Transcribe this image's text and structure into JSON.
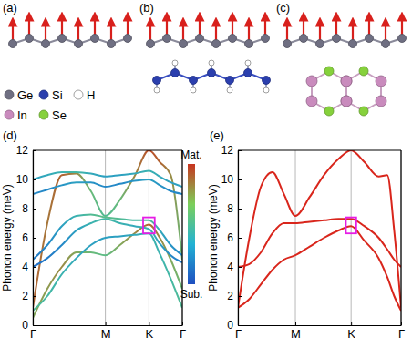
{
  "diagram": {
    "panels": [
      {
        "label": "(a)"
      },
      {
        "label": "(b)"
      },
      {
        "label": "(c)"
      }
    ],
    "legend": [
      {
        "label": "Ge",
        "color": "#6f6f82"
      },
      {
        "label": "Si",
        "color": "#2b3fae"
      },
      {
        "label": "H",
        "color": "#ffffff"
      },
      {
        "label": "In",
        "color": "#c98bbd"
      },
      {
        "label": "Se",
        "color": "#86d13c"
      }
    ],
    "spin_color": "#d8201c"
  },
  "chart_data": [
    {
      "type": "line",
      "title": "(d)",
      "y_label": "Phonon energy (meV)",
      "x": [
        0,
        0.2,
        0.4,
        0.6,
        0.8,
        1.0,
        1.2,
        1.4,
        1.6,
        1.75,
        1.9,
        2.06
      ],
      "xlim": [
        0,
        2.06
      ],
      "xticks": [
        {
          "value": 0,
          "label": "Γ"
        },
        {
          "value": 1,
          "label": "M"
        },
        {
          "value": 1.6,
          "label": "K"
        },
        {
          "value": 2.06,
          "label": "Γ"
        }
      ],
      "ylim": [
        0,
        12
      ],
      "yticks": [
        0,
        2,
        4,
        6,
        8,
        10,
        12
      ],
      "grid": "x",
      "series": [
        {
          "values": [
            1.2,
            7.0,
            10.3,
            10.4,
            9.2,
            7.5,
            8.6,
            10.2,
            12.0,
            11.2,
            10.3,
            4.5
          ],
          "weights": [
            0.9,
            0.85,
            0.9,
            0.8,
            0.6,
            0.5,
            0.6,
            0.8,
            0.95,
            0.9,
            0.8,
            0.6
          ]
        },
        {
          "values": [
            0.5,
            2.5,
            4.0,
            5.0,
            5.0,
            4.8,
            5.5,
            6.3,
            6.9,
            6.0,
            4.5,
            2.5
          ],
          "weights": [
            0.7,
            0.75,
            0.8,
            0.7,
            0.6,
            0.55,
            0.7,
            0.8,
            0.9,
            0.8,
            0.7,
            0.6
          ]
        },
        {
          "values": [
            10.0,
            10.3,
            10.5,
            10.5,
            10.4,
            10.2,
            10.3,
            10.4,
            10.6,
            10.2,
            9.8,
            9.5
          ],
          "weights": [
            0.3,
            0.35,
            0.4,
            0.45,
            0.35,
            0.3,
            0.3,
            0.35,
            0.4,
            0.35,
            0.3,
            0.3
          ]
        },
        {
          "values": [
            9.0,
            9.3,
            9.6,
            9.8,
            9.8,
            9.5,
            9.7,
            9.9,
            10.0,
            9.6,
            9.2,
            9.0
          ],
          "weights": [
            0.2,
            0.2,
            0.25,
            0.3,
            0.25,
            0.2,
            0.2,
            0.25,
            0.3,
            0.25,
            0.2,
            0.2
          ]
        },
        {
          "values": [
            4.5,
            5.5,
            6.8,
            7.5,
            7.6,
            7.4,
            7.3,
            7.2,
            7.2,
            6.5,
            5.5,
            4.8
          ],
          "weights": [
            0.15,
            0.2,
            0.3,
            0.4,
            0.5,
            0.55,
            0.5,
            0.45,
            0.5,
            0.35,
            0.25,
            0.2
          ]
        },
        {
          "values": [
            4.0,
            4.6,
            5.5,
            6.5,
            7.0,
            7.3,
            7.0,
            6.8,
            6.6,
            5.6,
            4.8,
            4.3
          ],
          "weights": [
            0.1,
            0.15,
            0.2,
            0.3,
            0.4,
            0.45,
            0.4,
            0.35,
            0.4,
            0.3,
            0.2,
            0.15
          ]
        },
        {
          "values": [
            1.0,
            2.0,
            3.5,
            4.6,
            5.5,
            6.0,
            6.1,
            6.2,
            6.3,
            4.9,
            3.2,
            1.2
          ],
          "weights": [
            0.5,
            0.45,
            0.4,
            0.35,
            0.3,
            0.3,
            0.3,
            0.35,
            0.4,
            0.4,
            0.45,
            0.5
          ]
        }
      ],
      "colorbar": {
        "range": [
          0,
          1
        ],
        "ticks": [
          {
            "value": 0,
            "label": "Sub."
          },
          {
            "value": 1,
            "label": "Mat."
          }
        ],
        "colors": [
          "#1f4fc0",
          "#22b2d4",
          "#7ccf5a",
          "#c8341f"
        ]
      },
      "annotations": [
        {
          "type": "rect",
          "x": [
            1.52,
            1.68
          ],
          "y": [
            6.3,
            7.4
          ],
          "color": "#e51de5"
        }
      ]
    },
    {
      "type": "line",
      "title": "(e)",
      "y_label": "Phonon energy (meV)",
      "x": [
        0,
        0.2,
        0.4,
        0.6,
        0.8,
        1.0,
        1.25,
        1.5,
        1.75,
        1.97,
        2.2,
        2.45,
        2.6,
        2.72,
        2.84
      ],
      "xlim": [
        0,
        2.84
      ],
      "xticks": [
        {
          "value": 0,
          "label": "Γ"
        },
        {
          "value": 1,
          "label": "M"
        },
        {
          "value": 1.97,
          "label": "K"
        },
        {
          "value": 2.84,
          "label": "Γ"
        }
      ],
      "ylim": [
        0,
        12
      ],
      "yticks": [
        0,
        2,
        4,
        6,
        8,
        10,
        12
      ],
      "grid": "x",
      "series": [
        {
          "color": "#d9261c",
          "values": [
            1.2,
            1.8,
            2.8,
            3.8,
            4.5,
            4.8,
            5.4,
            6.0,
            6.5,
            6.8,
            5.8,
            4.6,
            3.3,
            2.0,
            1.0
          ]
        },
        {
          "color": "#d9261c",
          "values": [
            4.0,
            4.2,
            5.0,
            6.3,
            7.0,
            7.0,
            7.1,
            7.2,
            7.3,
            7.3,
            6.8,
            6.0,
            5.2,
            4.5,
            4.0
          ]
        },
        {
          "color": "#d9261c",
          "values": [
            1.2,
            6.0,
            9.5,
            10.5,
            9.0,
            7.5,
            8.8,
            10.3,
            11.4,
            12.0,
            11.2,
            10.2,
            10.3,
            6.5,
            1.2
          ]
        }
      ],
      "annotations": [
        {
          "type": "rect",
          "x": [
            1.88,
            2.06
          ],
          "y": [
            6.3,
            7.4
          ],
          "color": "#e51de5"
        }
      ]
    }
  ]
}
